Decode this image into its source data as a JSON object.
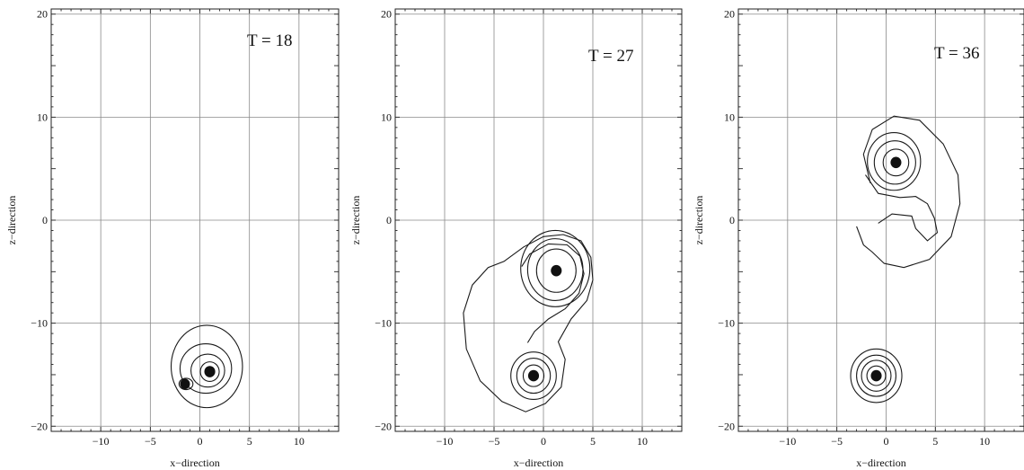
{
  "figure": {
    "axis_xlabel": "x−direction",
    "axis_ylabel": "z−direction"
  },
  "chart_data": [
    {
      "type": "contour",
      "title": "T = 18",
      "xlabel": "x−direction",
      "ylabel": "z−direction",
      "xlim": [
        -15,
        14
      ],
      "ylim": [
        -20.5,
        20.5
      ],
      "xticks": [
        -10,
        -5,
        0,
        5,
        10
      ],
      "yticks": [
        -20,
        -10,
        0,
        10,
        20
      ],
      "grid": true,
      "blobs": [
        {
          "x": 1.0,
          "z": -14.7,
          "r": 0.55
        },
        {
          "x": -1.5,
          "z": -15.9,
          "r": 0.5
        }
      ],
      "contours": [
        {
          "cx": 1.0,
          "cz": -14.7,
          "rx": 0.95,
          "rz": 0.95
        },
        {
          "cx": 0.8,
          "cz": -14.6,
          "rx": 1.7,
          "rz": 1.6
        },
        {
          "cx": 0.6,
          "cz": -14.4,
          "rx": 2.6,
          "rz": 2.4
        },
        {
          "cx": 0.7,
          "cz": -14.2,
          "rx": 3.6,
          "rz": 4.0
        },
        {
          "cx": -1.4,
          "cz": -15.9,
          "rx": 0.7,
          "rz": 0.55
        }
      ]
    },
    {
      "type": "contour",
      "title": "T = 27",
      "xlabel": "x−direction",
      "ylabel": "z−direction",
      "xlim": [
        -15,
        14
      ],
      "ylim": [
        -20.5,
        20.5
      ],
      "xticks": [
        -10,
        -5,
        0,
        5,
        10
      ],
      "yticks": [
        -20,
        -10,
        0,
        10,
        20
      ],
      "grid": true,
      "blobs": [
        {
          "x": 1.3,
          "z": -4.9,
          "r": 0.55
        },
        {
          "x": -1.0,
          "z": -15.1,
          "r": 0.55
        }
      ],
      "contours": [
        {
          "cx": 1.3,
          "cz": -4.9,
          "rx": 2.0,
          "rz": 2.1
        },
        {
          "cx": 1.2,
          "cz": -4.8,
          "rx": 2.8,
          "rz": 3.0
        },
        {
          "cx": 1.2,
          "cz": -4.7,
          "rx": 3.5,
          "rz": 3.7
        },
        {
          "cx": -1.0,
          "cz": -15.1,
          "rx": 1.05,
          "rz": 1.05
        },
        {
          "cx": -1.0,
          "cz": -15.1,
          "rx": 1.7,
          "rz": 1.7
        },
        {
          "cx": -1.0,
          "cz": -15.1,
          "rx": 2.3,
          "rz": 2.3
        }
      ]
    },
    {
      "type": "contour",
      "title": "T = 36",
      "xlabel": "x−direction",
      "ylabel": "z−direction",
      "xlim": [
        -15,
        14
      ],
      "ylim": [
        -20.5,
        20.5
      ],
      "xticks": [
        -10,
        -5,
        0,
        5,
        10
      ],
      "yticks": [
        -20,
        -10,
        0,
        10,
        20
      ],
      "grid": true,
      "blobs": [
        {
          "x": 1.0,
          "z": 5.6,
          "r": 0.55
        },
        {
          "x": -1.0,
          "z": -15.1,
          "r": 0.55
        }
      ],
      "contours": [
        {
          "cx": 1.0,
          "cz": 5.6,
          "rx": 1.3,
          "rz": 1.3
        },
        {
          "cx": 0.9,
          "cz": 5.6,
          "rx": 2.1,
          "rz": 2.1
        },
        {
          "cx": 0.8,
          "cz": 5.7,
          "rx": 2.7,
          "rz": 2.8
        },
        {
          "cx": -1.0,
          "cz": -15.1,
          "rx": 0.95,
          "rz": 0.95
        },
        {
          "cx": -1.0,
          "cz": -15.1,
          "rx": 1.5,
          "rz": 1.5
        },
        {
          "cx": -1.0,
          "cz": -15.1,
          "rx": 2.0,
          "rz": 2.0
        },
        {
          "cx": -1.0,
          "cz": -15.1,
          "rx": 2.6,
          "rz": 2.6
        }
      ]
    }
  ]
}
